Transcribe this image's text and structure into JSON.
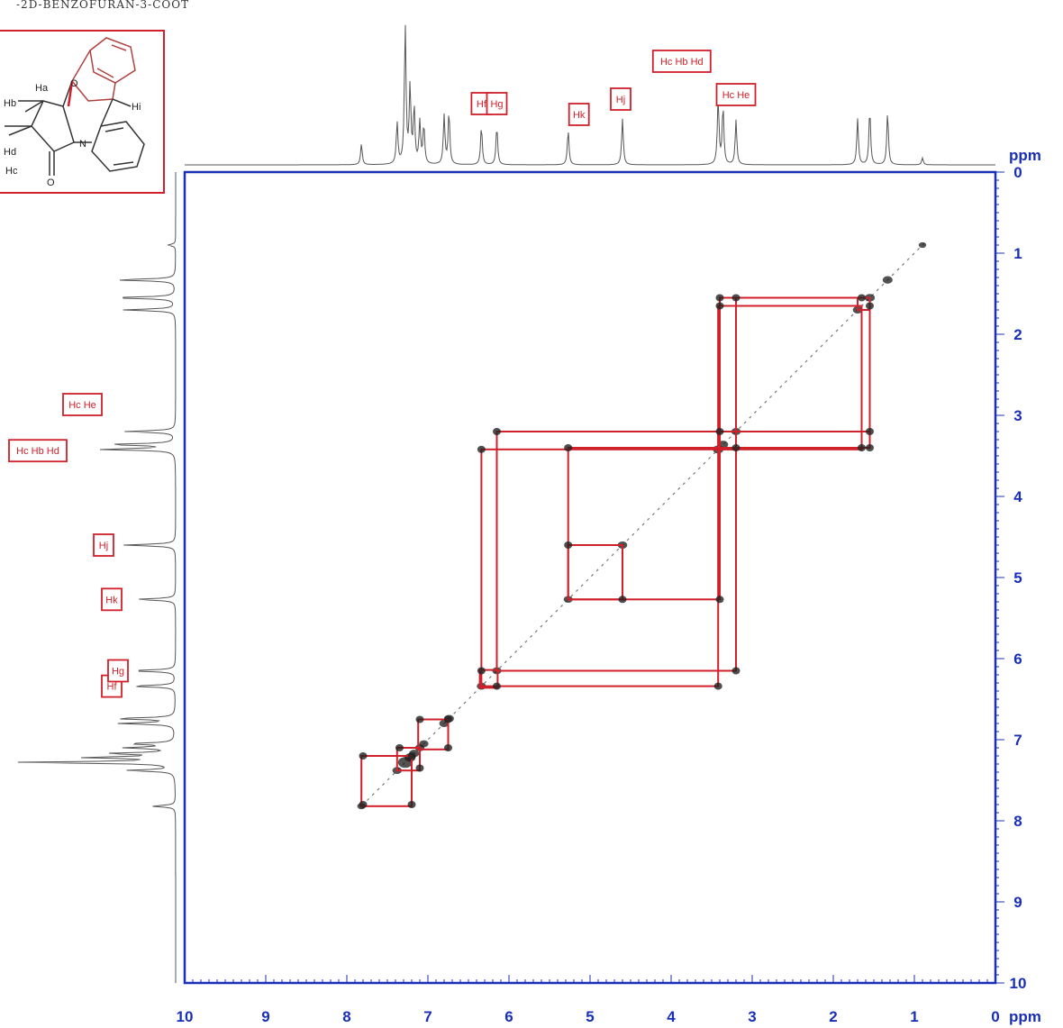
{
  "title_fragment": "-2D-BENZOFURAN-3-COOT",
  "chart_data": {
    "type": "heatmap",
    "subtype": "2D NMR COSY contour plot with 1D projections",
    "x_axis": {
      "unit": "ppm",
      "lim": [
        10,
        0
      ],
      "ticks": [
        "10",
        "9",
        "8",
        "7",
        "6",
        "5",
        "4",
        "3",
        "2",
        "1",
        "0"
      ]
    },
    "y_axis": {
      "unit": "ppm",
      "lim": [
        0,
        10
      ],
      "ticks": [
        "0",
        "1",
        "2",
        "3",
        "4",
        "5",
        "6",
        "7",
        "8",
        "9",
        "10"
      ]
    },
    "colors": {
      "axis": "#1a2fb8",
      "annotation": "#d0202a",
      "trace": "#555555",
      "contour": "#1a1a1a"
    },
    "projection_peaks": [
      {
        "ppm": 7.82,
        "h": 0.15
      },
      {
        "ppm": 7.38,
        "h": 0.3
      },
      {
        "ppm": 7.28,
        "h": 1.0
      },
      {
        "ppm": 7.22,
        "h": 0.55
      },
      {
        "ppm": 7.17,
        "h": 0.4
      },
      {
        "ppm": 7.1,
        "h": 0.3
      },
      {
        "ppm": 7.05,
        "h": 0.28
      },
      {
        "ppm": 6.8,
        "h": 0.35
      },
      {
        "ppm": 6.74,
        "h": 0.38
      },
      {
        "ppm": 6.34,
        "h": 0.28
      },
      {
        "ppm": 6.15,
        "h": 0.28
      },
      {
        "ppm": 5.27,
        "h": 0.25
      },
      {
        "ppm": 4.6,
        "h": 0.33
      },
      {
        "ppm": 3.42,
        "h": 0.48
      },
      {
        "ppm": 3.36,
        "h": 0.42
      },
      {
        "ppm": 3.2,
        "h": 0.32
      },
      {
        "ppm": 1.7,
        "h": 0.33
      },
      {
        "ppm": 1.55,
        "h": 0.4
      },
      {
        "ppm": 1.33,
        "h": 0.38
      },
      {
        "ppm": 0.9,
        "h": 0.05
      }
    ],
    "annotations": [
      {
        "label": "Hf",
        "ppm": 6.34
      },
      {
        "label": "Hg",
        "ppm": 6.15
      },
      {
        "label": "Hk",
        "ppm": 5.27
      },
      {
        "label": "Hj",
        "ppm": 4.6
      },
      {
        "label": "Hc Hb Hd",
        "ppm": 3.38
      },
      {
        "label": "Hc He",
        "ppm": 3.2
      }
    ],
    "diagonal_range": [
      7.75,
      0.85
    ],
    "cross_peaks": [
      [
        7.8,
        7.2
      ],
      [
        7.2,
        7.8
      ],
      [
        7.8,
        7.8
      ],
      [
        7.2,
        7.2
      ],
      [
        7.35,
        7.1
      ],
      [
        7.1,
        7.35
      ],
      [
        7.1,
        6.75
      ],
      [
        6.75,
        7.1
      ],
      [
        6.75,
        6.75
      ],
      [
        6.34,
        6.15
      ],
      [
        6.15,
        6.34
      ],
      [
        6.34,
        3.42
      ],
      [
        3.42,
        6.34
      ],
      [
        6.15,
        3.2
      ],
      [
        3.2,
        6.15
      ],
      [
        5.27,
        4.6
      ],
      [
        4.6,
        5.27
      ],
      [
        5.27,
        3.4
      ],
      [
        3.4,
        5.27
      ],
      [
        3.4,
        1.55
      ],
      [
        1.55,
        3.4
      ],
      [
        3.2,
        1.55
      ],
      [
        1.55,
        3.2
      ],
      [
        3.4,
        1.65
      ],
      [
        1.65,
        3.4
      ],
      [
        1.55,
        1.65
      ],
      [
        1.65,
        1.55
      ],
      [
        3.4,
        3.2
      ],
      [
        3.2,
        3.4
      ]
    ],
    "coupling_boxes": [
      {
        "x1": 7.82,
        "x2": 7.2,
        "y1": 7.2,
        "y2": 7.82
      },
      {
        "x1": 7.38,
        "x2": 7.1,
        "y1": 7.1,
        "y2": 7.38
      },
      {
        "x1": 7.12,
        "x2": 6.75,
        "y1": 6.75,
        "y2": 7.12
      },
      {
        "x1": 6.36,
        "x2": 6.14,
        "y1": 6.14,
        "y2": 6.36
      },
      {
        "x1": 6.34,
        "x2": 3.42,
        "y1": 3.42,
        "y2": 6.34
      },
      {
        "x1": 6.15,
        "x2": 3.2,
        "y1": 3.2,
        "y2": 6.15
      },
      {
        "x1": 5.27,
        "x2": 4.6,
        "y1": 4.6,
        "y2": 5.27
      },
      {
        "x1": 5.27,
        "x2": 3.4,
        "y1": 3.4,
        "y2": 5.27
      },
      {
        "x1": 3.4,
        "x2": 1.55,
        "y1": 1.55,
        "y2": 3.4
      },
      {
        "x1": 3.2,
        "x2": 1.55,
        "y1": 1.55,
        "y2": 3.2
      },
      {
        "x1": 3.42,
        "x2": 1.65,
        "y1": 1.65,
        "y2": 3.42
      },
      {
        "x1": 3.42,
        "x2": 3.2,
        "y1": 3.2,
        "y2": 3.42
      },
      {
        "x1": 1.7,
        "x2": 1.55,
        "y1": 1.55,
        "y2": 1.7
      }
    ]
  },
  "structure": {
    "labels": [
      "Ha",
      "Hb",
      "Hi",
      "Hc",
      "Hd",
      "N",
      "O",
      "O"
    ]
  }
}
